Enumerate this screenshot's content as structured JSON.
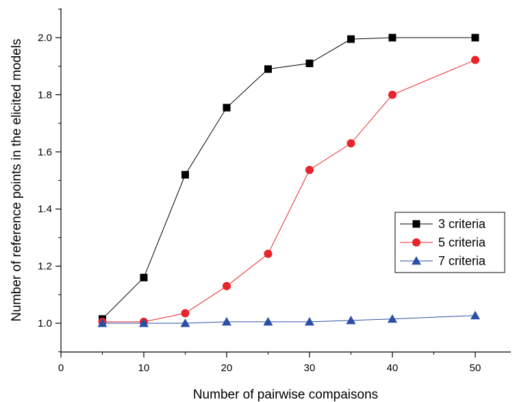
{
  "chart_data": {
    "type": "line",
    "title": "",
    "xlabel": "Number of pairwise compaisons",
    "ylabel": "Number of reference points in the elicited models",
    "xlim": [
      0,
      55
    ],
    "ylim": [
      0.9,
      2.1
    ],
    "xticks": [
      0,
      10,
      20,
      30,
      40,
      50
    ],
    "xtick_labels": [
      "0",
      "10",
      "20",
      "30",
      "40",
      "50"
    ],
    "yticks": [
      1.0,
      1.2,
      1.4,
      1.6,
      1.8,
      2.0
    ],
    "ytick_labels": [
      "1.0",
      "1.2",
      "1.4",
      "1.6",
      "1.8",
      "2.0"
    ],
    "grid": false,
    "legend_position": "center-right",
    "series": [
      {
        "name": "3 criteria",
        "color": "#000000",
        "marker": "square",
        "x": [
          5,
          10,
          15,
          20,
          25,
          30,
          35,
          40,
          50
        ],
        "y": [
          1.015,
          1.16,
          1.52,
          1.755,
          1.89,
          1.91,
          1.995,
          2.0,
          2.0
        ]
      },
      {
        "name": "5 criteria",
        "color": "#e8232a",
        "marker": "circle",
        "x": [
          5,
          10,
          15,
          20,
          25,
          30,
          35,
          40,
          50
        ],
        "y": [
          1.005,
          1.005,
          1.035,
          1.13,
          1.243,
          1.537,
          1.63,
          1.8,
          1.922
        ]
      },
      {
        "name": "7 criteria",
        "color": "#2a4fa6",
        "marker": "triangle",
        "x": [
          5,
          10,
          15,
          20,
          25,
          30,
          35,
          40,
          50
        ],
        "y": [
          1.0,
          1.0,
          1.0,
          1.005,
          1.005,
          1.005,
          1.01,
          1.015,
          1.027
        ]
      }
    ]
  }
}
